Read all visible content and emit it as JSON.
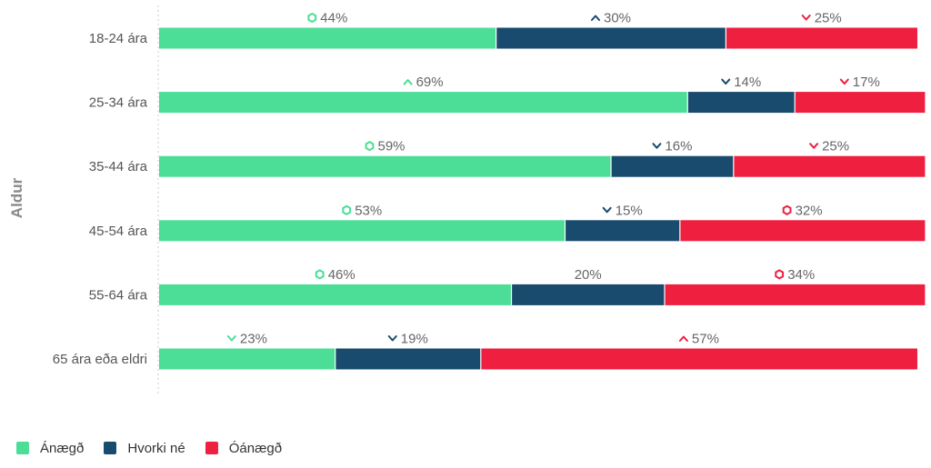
{
  "chart_data": {
    "type": "bar",
    "orientation": "horizontal",
    "stacked": true,
    "ylabel": "Aldur",
    "categories": [
      "18-24 ára",
      "25-34 ára",
      "35-44 ára",
      "45-54 ára",
      "55-64 ára",
      "65 ára eða eldri"
    ],
    "series": [
      {
        "name": "Ánægð",
        "color": "#4cde97",
        "values": [
          44,
          69,
          59,
          53,
          46,
          23
        ],
        "markers": [
          "diamond",
          "up",
          "diamond",
          "diamond",
          "diamond",
          "down"
        ]
      },
      {
        "name": "Hvorki né",
        "color": "#194b6e",
        "values": [
          30,
          14,
          16,
          15,
          20,
          19
        ],
        "markers": [
          "up",
          "down",
          "down",
          "down",
          "none",
          "down"
        ]
      },
      {
        "name": "Óánægð",
        "color": "#ee1f3f",
        "values": [
          25,
          17,
          25,
          32,
          34,
          57
        ],
        "markers": [
          "down",
          "down",
          "down",
          "diamond",
          "diamond",
          "up"
        ]
      }
    ],
    "value_suffix": "%",
    "xlim": [
      0,
      99
    ],
    "grid": false,
    "legend_position": "bottom-left"
  }
}
